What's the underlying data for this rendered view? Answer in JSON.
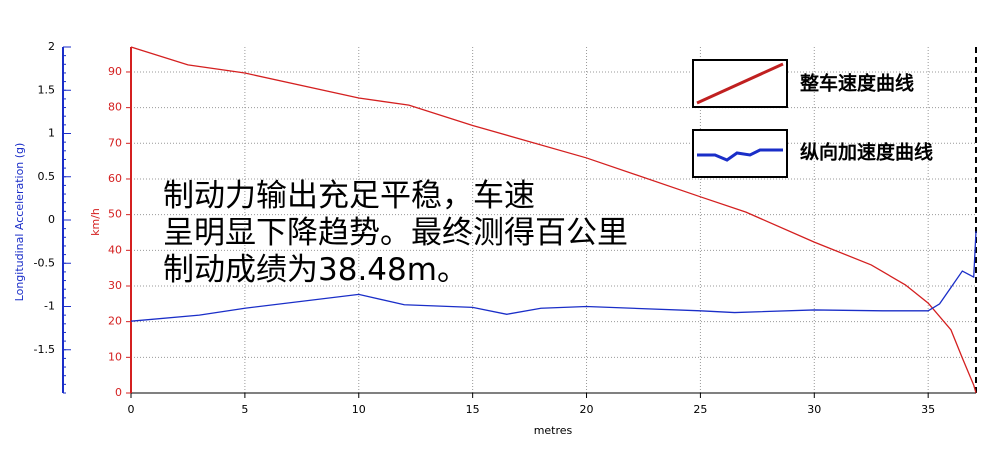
{
  "chart_data": {
    "type": "line",
    "xlabel": "metres",
    "ylabel": "km/h",
    "y2label": "Longitudinal Acceleration (g)",
    "annotations": [
      "制动力输出充足平稳，车速",
      "呈明显下降趋势。最终测得百公里",
      "制动成绩为38.48m。"
    ],
    "legend": "upper right",
    "grid": true,
    "xlim": [
      0,
      37.1
    ],
    "xticks": [
      0,
      5,
      10,
      15,
      20,
      25,
      30,
      35
    ],
    "ylim": [
      0,
      97
    ],
    "yticks": [
      0,
      10,
      20,
      30,
      40,
      50,
      60,
      70,
      80,
      90
    ],
    "y2lim": [
      -2,
      2
    ],
    "y2ticks": [
      -1.5,
      -1,
      -0.5,
      0,
      0.5,
      1,
      1.5,
      2
    ],
    "series": [
      {
        "name": "整车速度曲线",
        "color": "#d42020",
        "x": [
          0,
          2.5,
          5,
          10,
          12.2,
          15,
          20,
          25,
          27,
          30,
          32.5,
          34,
          35,
          36,
          36.5,
          37,
          37.1
        ],
        "values": [
          97,
          92,
          89.7,
          82.7,
          80.7,
          75,
          65.9,
          55,
          50.7,
          42.3,
          35.9,
          30.3,
          25.2,
          17.7,
          9.8,
          2.2,
          0
        ]
      },
      {
        "name": "纵向加速度曲线",
        "color": "#1a2ec8",
        "axis": "y2",
        "x": [
          0,
          3,
          5,
          10,
          12,
          15,
          16.5,
          18,
          20,
          25,
          26.5,
          30,
          33,
          35,
          35.5,
          36,
          36.5,
          37,
          37.1
        ],
        "values": [
          -1.17,
          -1.1,
          -1.02,
          -0.86,
          -0.98,
          -1.01,
          -1.09,
          -1.02,
          -1.0,
          -1.05,
          -1.07,
          -1.04,
          -1.05,
          -1.05,
          -0.97,
          -0.78,
          -0.59,
          -0.66,
          -0.13
        ]
      }
    ]
  }
}
